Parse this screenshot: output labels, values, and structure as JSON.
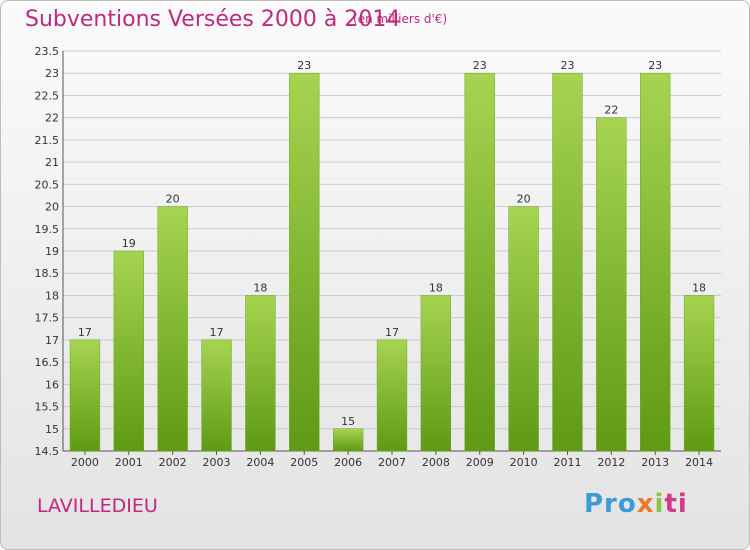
{
  "title": "Subventions Versées 2000 à 2014",
  "unit_note": "(en milliers d'€)",
  "commune": "LAVILLEDIEU",
  "logo": {
    "parts": [
      "Pro",
      "x",
      "i",
      "ti"
    ]
  },
  "colors": {
    "title": "#c0287d",
    "bar_light": "#a6d451",
    "bar_dark": "#5f9a14",
    "grid": "#cccccc"
  },
  "chart_data": {
    "type": "bar",
    "categories": [
      "2000",
      "2001",
      "2002",
      "2003",
      "2004",
      "2005",
      "2006",
      "2007",
      "2008",
      "2009",
      "2010",
      "2011",
      "2012",
      "2013",
      "2014"
    ],
    "values": [
      17,
      19,
      20,
      17,
      18,
      23,
      15,
      17,
      18,
      23,
      20,
      23,
      22,
      23,
      18
    ],
    "data_labels": [
      "17",
      "19",
      "20",
      "17",
      "18",
      "23",
      "15",
      "17",
      "18",
      "23",
      "20",
      "23",
      "22",
      "23",
      "18"
    ],
    "ylim": [
      14.5,
      23.5
    ],
    "yticks": [
      "14.5",
      "15",
      "15.5",
      "16",
      "16.5",
      "17",
      "17.5",
      "18",
      "18.5",
      "19",
      "19.5",
      "20",
      "20.5",
      "21",
      "21.5",
      "22",
      "22.5",
      "23",
      "23.5"
    ],
    "grid": true,
    "legend": "none"
  }
}
